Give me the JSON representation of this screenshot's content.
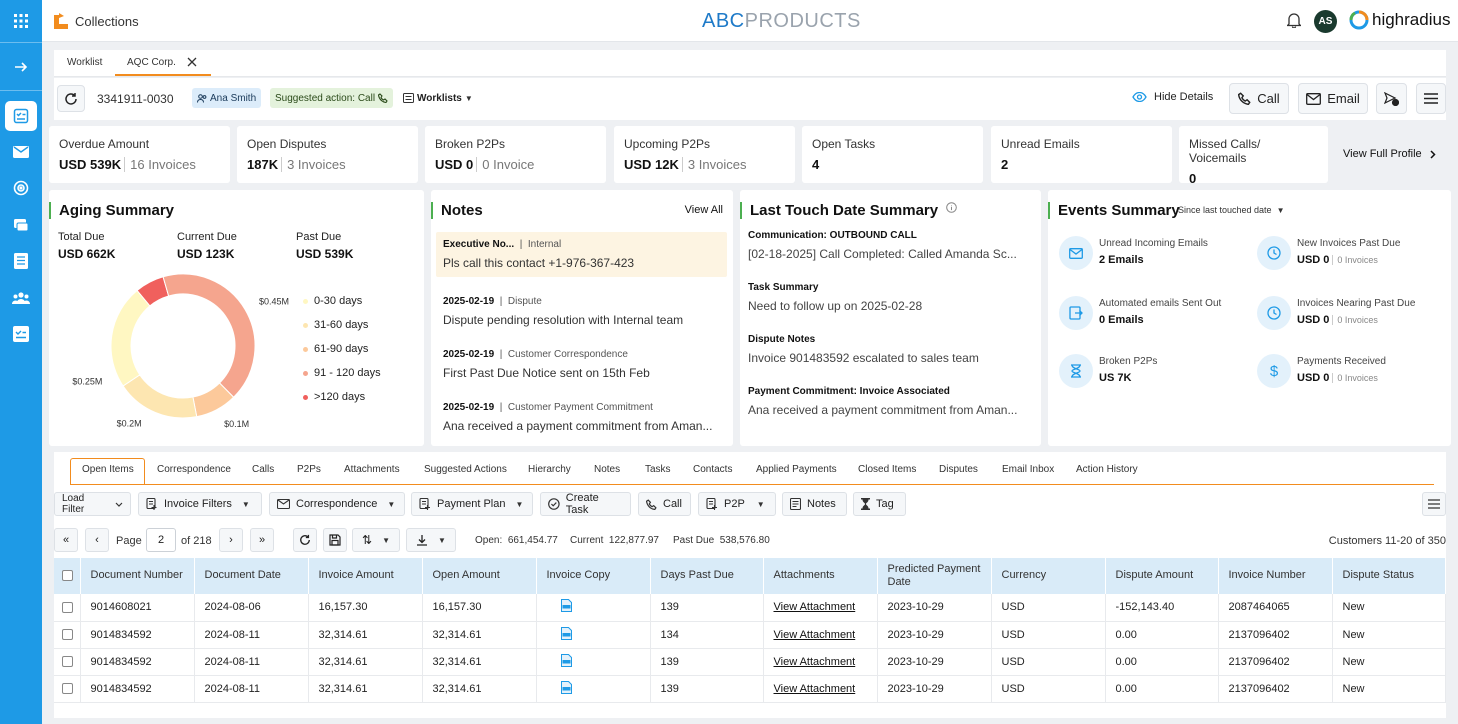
{
  "header": {
    "app_title": "Collections",
    "brand_primary": "ABC",
    "brand_secondary": "PRODUCTS",
    "avatar_initials": "AS",
    "logo_text": "highradius"
  },
  "tabs": [
    {
      "label": "Worklist"
    },
    {
      "label": "AQC Corp."
    }
  ],
  "customer": {
    "id": "3341911-0030",
    "owner": "Ana Smith",
    "suggested_action": "Suggested action: Call",
    "worklists": "Worklists",
    "hide_details": "Hide Details",
    "call": "Call",
    "email": "Email"
  },
  "kpis": [
    {
      "label": "Overdue Amount",
      "value": "USD 539K",
      "sub": "16 Invoices"
    },
    {
      "label": "Open Disputes",
      "value": "187K",
      "sub": "3 Invoices"
    },
    {
      "label": "Broken P2Ps",
      "value": "USD 0",
      "sub": "0 Invoice"
    },
    {
      "label": "Upcoming P2Ps",
      "value": "USD 12K",
      "sub": "3 Invoices"
    },
    {
      "label": "Open Tasks",
      "value": "4"
    },
    {
      "label": "Unread Emails",
      "value": "2"
    },
    {
      "label": "Missed Calls/ Voicemails",
      "value": "0"
    }
  ],
  "view_full_profile": "View Full Profile",
  "aging": {
    "title": "Aging Summary",
    "total_due_label": "Total Due",
    "total_due": "USD 662K",
    "current_due_label": "Current Due",
    "current_due": "USD 123K",
    "past_due_label": "Past Due",
    "past_due": "USD 539K",
    "slice_labels": [
      "$0.25M",
      "$0.2M",
      "$0.1M",
      "$0.45M"
    ],
    "legend": [
      "0-30 days",
      "31-60 days",
      "61-90 days",
      "91 - 120 days",
      ">120 days"
    ],
    "colors": [
      "#fff7c2",
      "#fde6b1",
      "#fcc99b",
      "#f5a58e",
      "#f0605d"
    ]
  },
  "chart_data": {
    "type": "pie",
    "categories": [
      "0-30 days",
      "31-60 days",
      "61-90 days",
      "91 - 120 days",
      ">120 days"
    ],
    "values": [
      0.25,
      0.2,
      0.1,
      0.45,
      0.07
    ]
  },
  "notes": {
    "title": "Notes",
    "view_all": "View All",
    "items": [
      {
        "head": "Executive No...",
        "tag": "Internal",
        "text": "Pls call this contact +1-976-367-423"
      },
      {
        "head": "2025-02-19",
        "tag": "Dispute",
        "text": "Dispute pending resolution with Internal team"
      },
      {
        "head": "2025-02-19",
        "tag": "Customer Correspondence",
        "text": "First Past Due Notice sent on 15th Feb"
      },
      {
        "head": "2025-02-19",
        "tag": "Customer Payment Commitment",
        "text": "Ana received a payment commitment from Aman..."
      }
    ]
  },
  "last_touch": {
    "title": "Last Touch Date Summary",
    "items": [
      {
        "head": "Communication: OUTBOUND CALL",
        "text": "[02-18-2025] Call Completed: Called Amanda Sc..."
      },
      {
        "head": "Task Summary",
        "text": "Need to follow up on 2025-02-28"
      },
      {
        "head": "Dispute Notes",
        "text": "Invoice 901483592 escalated to sales team"
      },
      {
        "head": "Payment Commitment: Invoice Associated",
        "text": "Ana received a payment commitment from Aman..."
      }
    ]
  },
  "events": {
    "title": "Events Summary",
    "filter": "Since last touched date",
    "items": [
      {
        "label": "Unread Incoming Emails",
        "value": "2 Emails",
        "icon": "mail-icon"
      },
      {
        "label": "New Invoices Past Due",
        "value": "USD 0",
        "sub": "0 Invoices",
        "icon": "clock-icon"
      },
      {
        "label": "Automated emails Sent Out",
        "value": "0 Emails",
        "icon": "send-icon"
      },
      {
        "label": "Invoices Nearing Past Due",
        "value": "USD 0",
        "sub": "0 Invoices",
        "icon": "clock-icon"
      },
      {
        "label": "Broken P2Ps",
        "value": "US 7K",
        "icon": "hourglass-icon"
      },
      {
        "label": "Payments Received",
        "value": "USD 0",
        "sub": "0 Invoices",
        "icon": "dollar-icon"
      }
    ]
  },
  "bottom_tabs": [
    "Open Items",
    "Correspondence",
    "Calls",
    "P2Ps",
    "Attachments",
    "Suggested Actions",
    "Hierarchy",
    "Notes",
    "Tasks",
    "Contacts",
    "Applied Payments",
    "Closed Items",
    "Disputes",
    "Email Inbox",
    "Action History"
  ],
  "toolbar": {
    "load_filter": "Load Filter",
    "invoice_filters": "Invoice Filters",
    "correspondence": "Correspondence",
    "payment_plan": "Payment Plan",
    "create_task": "Create Task",
    "call": "Call",
    "p2p": "P2P",
    "notes": "Notes",
    "tag": "Tag"
  },
  "pagination": {
    "page_label": "Page",
    "page": "2",
    "of_total": "of 218",
    "open_label": "Open:",
    "open_value": "661,454.77",
    "current_label": "Current",
    "current_value": "122,877.97",
    "past_due_label": "Past Due",
    "past_due_value": "538,576.80",
    "range": "Customers 11-20 of 350"
  },
  "table": {
    "columns": [
      "Document Number",
      "Document Date",
      "Invoice Amount",
      "Open Amount",
      "Invoice Copy",
      "Days Past Due",
      "Attachments",
      "Predicted Payment Date",
      "Currency",
      "Dispute Amount",
      "Invoice Number",
      "Dispute Status"
    ],
    "rows": [
      [
        "9014608021",
        "2024-08-06",
        "16,157.30",
        "16,157.30",
        "",
        "139",
        "View Attachment",
        "2023-10-29",
        "USD",
        "-152,143.40",
        "2087464065",
        "New"
      ],
      [
        "9014834592",
        "2024-08-11",
        "32,314.61",
        "32,314.61",
        "",
        "134",
        "View Attachment",
        "2023-10-29",
        "USD",
        "0.00",
        "2137096402",
        "New"
      ],
      [
        "9014834592",
        "2024-08-11",
        "32,314.61",
        "32,314.61",
        "",
        "139",
        "View Attachment",
        "2023-10-29",
        "USD",
        "0.00",
        "2137096402",
        "New"
      ],
      [
        "9014834592",
        "2024-08-11",
        "32,314.61",
        "32,314.61",
        "",
        "139",
        "View Attachment",
        "2023-10-29",
        "USD",
        "0.00",
        "2137096402",
        "New"
      ]
    ]
  }
}
